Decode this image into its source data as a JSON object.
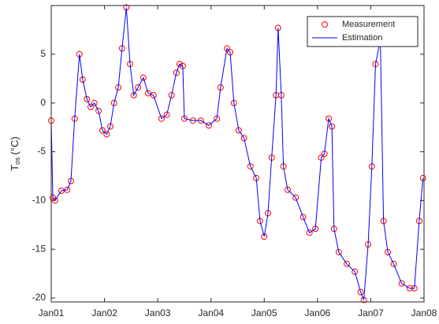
{
  "chart_data": {
    "type": "line",
    "y_label": "T",
    "y_label_sub": "os",
    "y_label_unit": "(°C)",
    "x": [
      0,
      0.03,
      0.07,
      0.19,
      0.3,
      0.37,
      0.44,
      0.53,
      0.59,
      0.67,
      0.74,
      0.81,
      0.89,
      0.96,
      1.04,
      1.11,
      1.18,
      1.26,
      1.33,
      1.41,
      1.48,
      1.55,
      1.63,
      1.73,
      1.82,
      1.92,
      2.07,
      2.17,
      2.26,
      2.35,
      2.41,
      2.47,
      2.5,
      2.66,
      2.81,
      2.96,
      3.11,
      3.18,
      3.3,
      3.36,
      3.43,
      3.52,
      3.62,
      3.74,
      3.85,
      3.92,
      4.0,
      4.07,
      4.14,
      4.22,
      4.26,
      4.32,
      4.36,
      4.44,
      4.59,
      4.73,
      4.85,
      4.96,
      5.07,
      5.13,
      5.21,
      5.27,
      5.31,
      5.4,
      5.55,
      5.7,
      5.81,
      5.87,
      5.95,
      6.02,
      6.09,
      6.18,
      6.24,
      6.32,
      6.43,
      6.58,
      6.73,
      6.82,
      6.91,
      6.98
    ],
    "series": [
      {
        "name": "Measurement",
        "color": "#ff0000",
        "marker": "circle",
        "values": [
          -1.8,
          -9.7,
          -10,
          -9.0,
          -8.9,
          -8,
          -1.6,
          5,
          2.4,
          0.4,
          -0.4,
          0,
          -0.8,
          -2.8,
          -3.2,
          -2.4,
          0,
          1.6,
          5.6,
          9.8,
          4,
          0.8,
          1.6,
          2.6,
          1,
          0.8,
          -1.6,
          -1.2,
          0.8,
          3.1,
          4,
          3.8,
          -1.6,
          -1.8,
          -1.8,
          -2.3,
          -1.6,
          1.6,
          5.6,
          5.2,
          0,
          -2.8,
          -3.6,
          -6.5,
          -7.7,
          -12.1,
          -13.7,
          -11.3,
          -5.6,
          0.8,
          7.7,
          0.8,
          -6.5,
          -8.9,
          -9.7,
          -11.7,
          -13.3,
          -12.9,
          -5.6,
          -5.2,
          -1.6,
          -2.4,
          -12.9,
          -15.3,
          -16.5,
          -17.3,
          -19.4,
          -20.2,
          -14.5,
          -6.5,
          4,
          6.5,
          -12.1,
          -15.3,
          -16.5,
          -18.5,
          -19,
          -19,
          -12.1,
          -7.7
        ]
      },
      {
        "name": "Estimation",
        "color": "#0000ff",
        "marker": "none",
        "values": [
          -1.8,
          -9.7,
          -10,
          -9.0,
          -8.9,
          -8,
          -1.6,
          5,
          2.4,
          0.4,
          -0.4,
          0,
          -0.8,
          -2.8,
          -3.2,
          -2.4,
          0,
          1.6,
          5.6,
          9.8,
          4,
          0.8,
          1.6,
          2.6,
          1,
          0.8,
          -1.6,
          -1.2,
          0.8,
          3.1,
          4,
          3.8,
          -1.6,
          -1.8,
          -1.8,
          -2.3,
          -1.6,
          1.6,
          5.6,
          5.2,
          0,
          -2.8,
          -3.6,
          -6.5,
          -7.7,
          -12.1,
          -13.7,
          -11.3,
          -5.6,
          0.8,
          7.7,
          0.8,
          -6.5,
          -8.9,
          -9.7,
          -11.7,
          -13.3,
          -12.9,
          -5.6,
          -5.2,
          -1.6,
          -2.4,
          -12.9,
          -15.3,
          -16.5,
          -17.3,
          -19.4,
          -20.2,
          -14.5,
          -6.5,
          4,
          6.5,
          -12.1,
          -15.3,
          -16.5,
          -18.5,
          -19,
          -19,
          -12.1,
          -7.7
        ]
      }
    ],
    "xlim": [
      0,
      7
    ],
    "xticks": [
      {
        "value": 0,
        "label": "Jan01"
      },
      {
        "value": 1,
        "label": "Jan02"
      },
      {
        "value": 2,
        "label": "Jan03"
      },
      {
        "value": 3,
        "label": "Jan04"
      },
      {
        "value": 4,
        "label": "Jan05"
      },
      {
        "value": 5,
        "label": "Jan06"
      },
      {
        "value": 6,
        "label": "Jan07"
      },
      {
        "value": 7,
        "label": "Jan08"
      }
    ],
    "ylim": [
      -20.4,
      10
    ],
    "yticks": [
      -20,
      -15,
      -10,
      -5,
      0,
      5
    ],
    "grid": false,
    "legend": "upper right"
  }
}
